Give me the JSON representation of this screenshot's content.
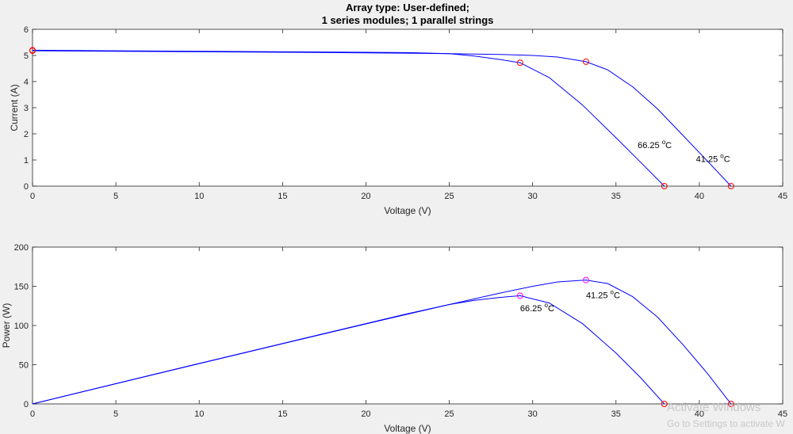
{
  "chart_data": [
    {
      "type": "line",
      "title": "Array type: User-defined;",
      "subtitle": "1 series modules; 1 parallel strings",
      "xlabel": "Voltage (V)",
      "ylabel": "Current (A)",
      "xlim": [
        0,
        45
      ],
      "ylim": [
        0,
        6
      ],
      "xticks": [
        0,
        5,
        10,
        15,
        20,
        25,
        30,
        35,
        40,
        45
      ],
      "yticks": [
        0,
        1,
        2,
        3,
        4,
        5,
        6
      ],
      "grid": false,
      "series": [
        {
          "name": "41.25 °C",
          "x": [
            0,
            5,
            10,
            15,
            20,
            25,
            28,
            30,
            31.5,
            33.2,
            34.5,
            36,
            37.5,
            39,
            40.5,
            41.9
          ],
          "y": [
            5.18,
            5.16,
            5.14,
            5.12,
            5.1,
            5.07,
            5.04,
            5.0,
            4.94,
            4.76,
            4.45,
            3.8,
            2.95,
            1.95,
            0.95,
            0
          ]
        },
        {
          "name": "66.25 °C",
          "x": [
            0,
            5,
            10,
            15,
            20,
            22.5,
            25,
            26.5,
            28,
            29.25,
            31,
            33,
            35,
            36.5,
            37.9
          ],
          "y": [
            5.2,
            5.18,
            5.16,
            5.14,
            5.12,
            5.11,
            5.07,
            4.98,
            4.85,
            4.72,
            4.15,
            3.1,
            1.85,
            0.9,
            0
          ]
        }
      ],
      "markers": [
        {
          "x": 0,
          "y": 5.18
        },
        {
          "x": 0,
          "y": 5.2
        },
        {
          "x": 33.2,
          "y": 4.76
        },
        {
          "x": 29.25,
          "y": 4.72
        },
        {
          "x": 41.9,
          "y": 0
        },
        {
          "x": 37.9,
          "y": 0
        }
      ],
      "annotations": [
        {
          "text": "66.25",
          "sup": "o",
          "unit": "C",
          "x": 36.3,
          "y": 1.45
        },
        {
          "text": "41.25",
          "sup": "o",
          "unit": "C",
          "x": 39.8,
          "y": 0.93
        }
      ]
    },
    {
      "type": "line",
      "xlabel": "Voltage (V)",
      "ylabel": "Power (W)",
      "xlim": [
        0,
        45
      ],
      "ylim": [
        0,
        200
      ],
      "xticks": [
        0,
        5,
        10,
        15,
        20,
        25,
        30,
        35,
        40,
        45
      ],
      "yticks": [
        0,
        50,
        100,
        150,
        200
      ],
      "grid": false,
      "series": [
        {
          "name": "41.25 °C",
          "x": [
            0,
            5,
            10,
            15,
            20,
            25,
            28,
            30,
            31.5,
            33.2,
            34.5,
            36,
            37.5,
            39,
            40.5,
            41.9
          ],
          "y": [
            0,
            25.8,
            51.4,
            76.8,
            102,
            126.8,
            141.1,
            150,
            155.6,
            158,
            153.5,
            136.8,
            110.6,
            76,
            38.5,
            0
          ]
        },
        {
          "name": "66.25 °C",
          "x": [
            0,
            5,
            10,
            15,
            20,
            22.5,
            25,
            26.5,
            28,
            29.25,
            31,
            33,
            35,
            36.5,
            37.9
          ],
          "y": [
            0,
            25.9,
            51.6,
            77.1,
            102.4,
            115,
            126.8,
            132,
            135.8,
            138,
            128.7,
            102.3,
            64.8,
            32.9,
            0
          ]
        }
      ],
      "markers": [
        {
          "x": 33.2,
          "y": 158
        },
        {
          "x": 29.25,
          "y": 138
        },
        {
          "x": 41.9,
          "y": 0
        },
        {
          "x": 37.9,
          "y": 0
        }
      ],
      "annotations": [
        {
          "text": "41.25",
          "sup": "o",
          "unit": "C",
          "x": 33.2,
          "y": 135
        },
        {
          "text": "66.25",
          "sup": "o",
          "unit": "C",
          "x": 29.25,
          "y": 118
        }
      ]
    }
  ],
  "watermark": {
    "line1": "Activate Windows",
    "line2": "Go to Settings to activate W"
  },
  "colors": {
    "series": "#0000ff",
    "marker_iv": "#ff0000",
    "marker_pv_mpp": "#ff00ff",
    "marker_pv_oc": "#ff0000",
    "axes_bg": "#ffffff",
    "fig_bg": "#f0f0f0"
  }
}
